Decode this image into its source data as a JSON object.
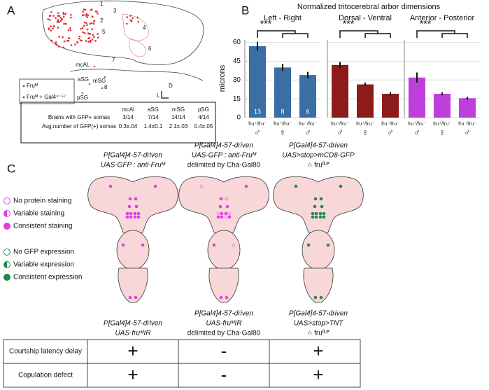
{
  "panel_a": {
    "label": "A",
    "regions": [
      "1",
      "2",
      "3",
      "4",
      "5",
      "6",
      "7",
      "8"
    ],
    "region_names": [
      "mcAL",
      "aSG",
      "mSG",
      "pSG"
    ],
    "legend": [
      "Fruᴹ",
      "Fruᴹ + Gal4⁴⁻⁵⁷"
    ],
    "axis_labels": [
      "D",
      "L"
    ],
    "table": {
      "header": [
        "mcAl",
        "aSG",
        "mSG",
        "pSG"
      ],
      "rows": [
        {
          "label": "Brains with GFP+ somas",
          "cells": [
            "3/14",
            "7/14",
            "14/14",
            "4/14"
          ]
        },
        {
          "label": "Avg.number of GFP(+) somas",
          "cells": [
            "0.3±.04",
            "1.4±0.1",
            "2.1±.03",
            "0.4±.05"
          ]
        }
      ]
    }
  },
  "panel_b": {
    "label": "B",
    "title": "Normalized tritocerebral arbor dimensions",
    "y_label": "microns",
    "significance": "***"
  },
  "chart_data": [
    {
      "type": "bar",
      "title": "Left - Right",
      "categories": [
        "fru⁺/fru⁻",
        "fru⁺/fru⁻",
        "fru⁻/fru⁻"
      ],
      "sexes": [
        "♂",
        "♀",
        "♂"
      ],
      "values": [
        57,
        40,
        34
      ],
      "errors": [
        3.5,
        3,
        2.5
      ],
      "n": [
        13,
        8,
        6
      ],
      "color": "#3a6ea5",
      "ylim": [
        0,
        62
      ],
      "yticks": [
        0,
        15,
        30,
        45,
        60
      ],
      "grid": true
    },
    {
      "type": "bar",
      "title": "Dorsal - Ventral",
      "categories": [
        "fru⁺/fru⁻",
        "fru⁺/fru⁻",
        "fru⁻/fru⁻"
      ],
      "sexes": [
        "♂",
        "♀",
        "♂"
      ],
      "values": [
        42,
        26.5,
        19
      ],
      "errors": [
        2.5,
        1.5,
        1.5
      ],
      "color": "#8e1b1b",
      "ylim": [
        0,
        62
      ],
      "yticks": [
        0,
        15,
        30,
        45,
        60
      ],
      "grid": true
    },
    {
      "type": "bar",
      "title": "Anterior - Posterior",
      "categories": [
        "fru⁺/fru⁻",
        "fru⁺/fru⁻",
        "fru⁻/fru⁻"
      ],
      "sexes": [
        "♂",
        "♀",
        "♂"
      ],
      "values": [
        32,
        19,
        15.5
      ],
      "errors": [
        4,
        1.2,
        1.2
      ],
      "color": "#bf3fdc",
      "ylim": [
        0,
        62
      ],
      "yticks": [
        0,
        15,
        30,
        45,
        60
      ],
      "grid": true
    }
  ],
  "panel_c": {
    "label": "C",
    "columns": [
      [
        "P[Gal4]4-57-driven",
        "UAS-GFP : anti-Fruᴹ"
      ],
      [
        "P[Gal4]4-57-driven",
        "UAS-GFP : anti-Fruᴹ",
        "delimited by Cha-Gal80"
      ],
      [
        "P[Gal4]4-57-driven",
        "UAS>stop>mCD8-GFP",
        "∩ fruᶠᴸᴾ"
      ]
    ],
    "legend_protein": [
      "No protein staining",
      "Variable staining",
      "Consistent staining"
    ],
    "legend_gfp": [
      "No GFP expression",
      "Variable expression",
      "Consistent expression"
    ],
    "table": {
      "columns": [
        [
          "P[Gal4]4-57-driven",
          "UAS-fruᴹIR"
        ],
        [
          "P[Gal4]4-57-driven",
          "UAS-fruᴹIR",
          "delimited by Cha-Gal80"
        ],
        [
          "P[Gal4]4-57-driven",
          "UAS>stop>TNT",
          "∩ fruᶠᴸᴾ"
        ]
      ],
      "rows": [
        {
          "label": "Courtship latency delay",
          "cells": [
            "+",
            "-",
            "+"
          ]
        },
        {
          "label": "Copulation defect",
          "cells": [
            "+",
            "-",
            "+"
          ]
        }
      ]
    }
  }
}
